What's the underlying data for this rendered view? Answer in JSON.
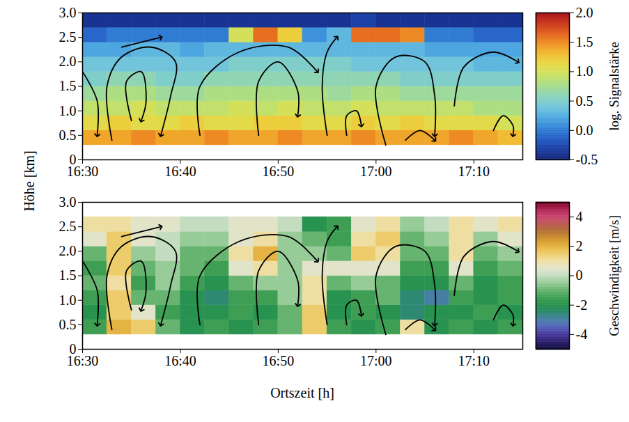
{
  "chart_data": {
    "type": "heatmap",
    "xlabel": "Ortszeit [h]",
    "ylabel": "Höhe [km]",
    "xlim": [
      990,
      1035
    ],
    "xticks": [
      {
        "value": 990,
        "label": "16:30"
      },
      {
        "value": 1000,
        "label": "16:40"
      },
      {
        "value": 1010,
        "label": "16:50"
      },
      {
        "value": 1020,
        "label": "17:00"
      },
      {
        "value": 1030,
        "label": "17:10"
      }
    ],
    "ylim": [
      0,
      3
    ],
    "yticks": [
      0,
      0.5,
      {
        "value": 1,
        "label": "1.0"
      },
      1.5,
      {
        "value": 2,
        "label": "2.0"
      },
      2.5,
      {
        "value": 3,
        "label": "3.0"
      }
    ],
    "grid": false,
    "x": [
      990,
      992.5,
      995,
      997.5,
      1000,
      1002.5,
      1005,
      1007.5,
      1010,
      1012.5,
      1015,
      1017.5,
      1020,
      1022.5,
      1025,
      1027.5,
      1030,
      1032.5
    ],
    "y": [
      0.3,
      0.6,
      0.9,
      1.2,
      1.5,
      1.8,
      2.1,
      2.4,
      2.7
    ],
    "arrows": [
      [
        [
          990,
          1.8
        ],
        [
          991.5,
          1.2
        ],
        [
          991.5,
          0.5
        ]
      ],
      [
        [
          993,
          0.4
        ],
        [
          992.5,
          1.5
        ],
        [
          994,
          2.1
        ],
        [
          997,
          2.3
        ],
        [
          999.5,
          2.0
        ],
        [
          999,
          1.3
        ],
        [
          998,
          0.5
        ]
      ],
      [
        [
          995,
          0.8
        ],
        [
          994.5,
          1.6
        ],
        [
          996,
          1.8
        ],
        [
          996.5,
          1.2
        ],
        [
          996,
          0.8
        ]
      ],
      [
        [
          994,
          2.3
        ],
        [
          998,
          2.5
        ]
      ],
      [
        [
          1002,
          0.5
        ],
        [
          1002,
          1.5
        ],
        [
          1006,
          2.2
        ],
        [
          1011,
          2.3
        ],
        [
          1014,
          1.8
        ]
      ],
      [
        [
          1008,
          0.5
        ],
        [
          1008,
          1.6
        ],
        [
          1010,
          2.0
        ],
        [
          1012,
          1.4
        ],
        [
          1012,
          0.9
        ]
      ],
      [
        [
          1015,
          0.5
        ],
        [
          1014.5,
          1.5
        ],
        [
          1015,
          2.2
        ],
        [
          1016,
          2.5
        ]
      ],
      [
        [
          1017,
          0.5
        ],
        [
          1017,
          0.9
        ],
        [
          1018,
          1.0
        ],
        [
          1018.5,
          0.7
        ]
      ],
      [
        [
          1021,
          0.3
        ],
        [
          1020,
          1.5
        ],
        [
          1022,
          2.1
        ],
        [
          1025,
          2.0
        ],
        [
          1026,
          1.3
        ],
        [
          1026,
          0.5
        ]
      ],
      [
        [
          1023,
          0.4
        ],
        [
          1024.5,
          0.6
        ],
        [
          1026,
          0.4
        ]
      ],
      [
        [
          1028,
          1.1
        ],
        [
          1029,
          1.9
        ],
        [
          1032,
          2.2
        ],
        [
          1034.5,
          2.0
        ]
      ],
      [
        [
          1032,
          0.6
        ],
        [
          1033,
          0.9
        ],
        [
          1034,
          0.7
        ],
        [
          1034,
          0.5
        ]
      ]
    ],
    "panels": [
      {
        "values": [
          [
            1.4,
            1.4,
            1.5,
            1.4,
            1.4,
            1.5,
            1.4,
            1.4,
            1.5,
            1.4,
            1.4,
            1.5,
            1.4,
            1.4,
            1.4,
            1.5,
            1.4,
            1.3
          ],
          [
            1.1,
            1.2,
            1.1,
            1.1,
            1.2,
            1.1,
            1.1,
            1.2,
            1.2,
            1.1,
            1.1,
            1.2,
            1.1,
            1.2,
            1.1,
            1.1,
            1.1,
            1.0
          ],
          [
            0.9,
            0.9,
            1.0,
            0.9,
            0.9,
            0.9,
            1.0,
            0.9,
            1.0,
            0.9,
            0.9,
            1.0,
            0.9,
            0.9,
            0.9,
            0.9,
            0.8,
            0.8
          ],
          [
            0.7,
            0.8,
            0.8,
            0.7,
            0.7,
            0.8,
            0.8,
            0.8,
            0.8,
            0.8,
            0.7,
            0.8,
            0.8,
            0.7,
            0.7,
            0.7,
            0.7,
            0.7
          ],
          [
            0.5,
            0.6,
            0.6,
            0.5,
            0.5,
            0.6,
            0.6,
            0.6,
            0.6,
            0.6,
            0.6,
            0.6,
            0.6,
            0.5,
            0.5,
            0.5,
            0.5,
            0.5
          ],
          [
            0.4,
            0.4,
            0.4,
            0.4,
            0.4,
            0.4,
            0.5,
            0.5,
            0.5,
            0.5,
            0.5,
            0.4,
            0.4,
            0.4,
            0.4,
            0.4,
            0.3,
            0.3
          ],
          [
            0.2,
            0.2,
            0.3,
            0.3,
            0.2,
            0.3,
            0.3,
            0.3,
            0.3,
            0.3,
            0.3,
            0.3,
            0.3,
            0.3,
            0.2,
            0.2,
            0.2,
            0.2
          ],
          [
            -0.1,
            0.0,
            0.0,
            0.0,
            0.0,
            0.0,
            1.0,
            1.6,
            1.2,
            0.1,
            0.3,
            1.6,
            1.6,
            1.5,
            0.0,
            0.0,
            -0.1,
            -0.1
          ],
          [
            -0.4,
            -0.4,
            -0.4,
            -0.4,
            -0.4,
            -0.4,
            -0.4,
            -0.4,
            -0.4,
            -0.4,
            -0.4,
            -0.3,
            -0.4,
            -0.4,
            -0.4,
            -0.4,
            -0.4,
            -0.4
          ]
        ],
        "colorbar": {
          "label": "log. Signalstärke",
          "range": [
            -0.5,
            2.0
          ],
          "ticks": [
            -0.5,
            {
              "value": 0,
              "label": "0.0"
            },
            0.5,
            {
              "value": 1,
              "label": "1.0"
            },
            1.5,
            {
              "value": 2,
              "label": "2.0"
            }
          ]
        }
      },
      {
        "values": [
          [
            -1.5,
            2.0,
            1.5,
            -1.0,
            -2.0,
            -1.5,
            -2.0,
            -1.5,
            -1.0,
            1.5,
            -1.5,
            -2.0,
            -1.5,
            1.0,
            -2.0,
            -1.5,
            -2.0,
            -1.5
          ],
          [
            -2.0,
            1.5,
            0.5,
            -1.5,
            -2.0,
            -2.0,
            -1.5,
            -2.0,
            -1.0,
            1.5,
            -2.0,
            -1.5,
            -2.0,
            -2.5,
            -2.0,
            -2.0,
            -1.5,
            -2.0
          ],
          [
            -1.5,
            1.5,
            -1.0,
            -1.0,
            -2.0,
            -2.5,
            -1.5,
            -1.5,
            -0.5,
            1.0,
            -2.0,
            -1.5,
            -1.0,
            -2.5,
            -3.0,
            -1.5,
            -2.0,
            -1.5
          ],
          [
            -1.0,
            1.0,
            -1.5,
            -0.5,
            -1.5,
            -2.0,
            -1.0,
            -0.5,
            -0.5,
            1.0,
            -1.0,
            -0.5,
            -1.0,
            -2.0,
            -2.0,
            -1.0,
            -2.0,
            -1.5
          ],
          [
            -1.5,
            1.5,
            -1.0,
            -0.5,
            -1.0,
            -1.5,
            0.5,
            1.0,
            -0.5,
            0.5,
            0.5,
            0.5,
            0.5,
            -1.5,
            -1.5,
            0.5,
            -1.5,
            -1.0
          ],
          [
            -1.0,
            1.5,
            -0.5,
            0.0,
            -1.0,
            -1.0,
            1.0,
            2.0,
            -0.5,
            -0.5,
            -1.0,
            1.5,
            1.0,
            -1.0,
            -1.0,
            1.0,
            -1.0,
            -0.5
          ],
          [
            0.5,
            1.5,
            0.5,
            0.0,
            -0.5,
            -0.5,
            0.5,
            1.0,
            -0.5,
            -1.0,
            -1.5,
            1.0,
            1.5,
            -1.0,
            -0.5,
            1.0,
            -0.5,
            0.5
          ],
          [
            1.0,
            1.0,
            0.5,
            0.5,
            0.0,
            0.0,
            0.5,
            0.5,
            0.0,
            -2.0,
            -1.5,
            0.5,
            1.0,
            -0.5,
            0.0,
            1.0,
            0.5,
            1.0
          ],
          [
            null,
            null,
            null,
            null,
            null,
            null,
            null,
            null,
            null,
            null,
            null,
            null,
            null,
            null,
            null,
            null,
            null,
            null
          ]
        ],
        "colorbar": {
          "label": "Geschwindigkeit [m/s]",
          "range": [
            -5,
            5
          ],
          "ticks": [
            -4,
            -2,
            0,
            2,
            4
          ]
        }
      }
    ]
  }
}
